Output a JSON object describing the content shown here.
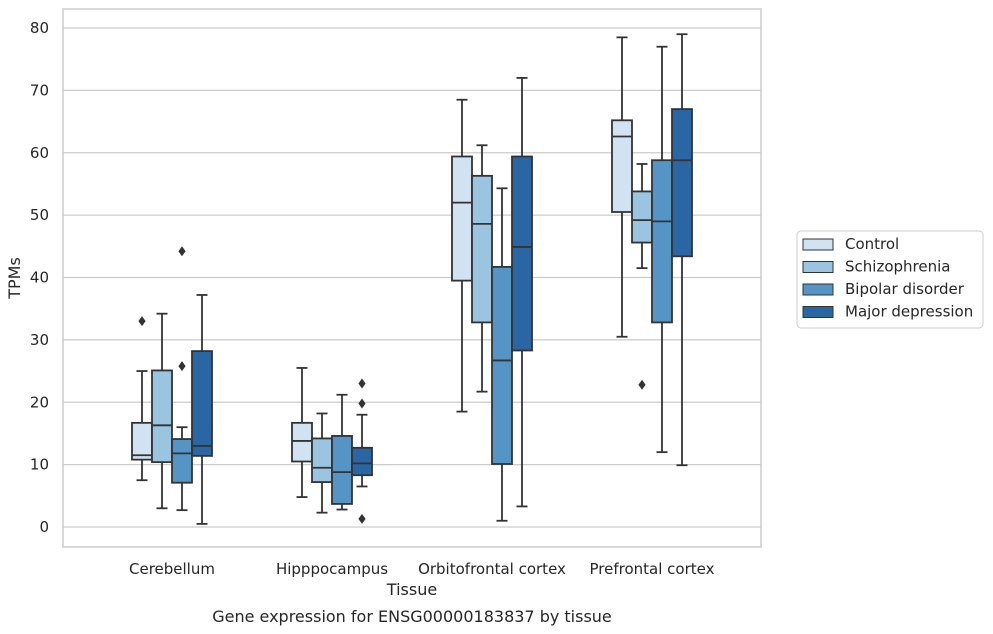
{
  "chart_data": {
    "type": "box",
    "title": "",
    "caption": "Gene expression for ENSG00000183837 by tissue",
    "xlabel": "Tissue",
    "ylabel": "TPMs",
    "ylim": [
      -3.2,
      83.2
    ],
    "yticks": [
      0,
      10,
      20,
      30,
      40,
      50,
      60,
      70,
      80
    ],
    "grid": "horizontal",
    "legend_position": "right",
    "categories": [
      "Cerebellum",
      "Hipppocampus",
      "Orbitofrontal cortex",
      "Prefrontal cortex"
    ],
    "series": [
      {
        "name": "Control",
        "color": "#d1e2f2",
        "boxes": [
          {
            "whislo": 7.5,
            "q1": 10.8,
            "med": 11.5,
            "q3": 16.7,
            "whishi": 25.0,
            "fliers": [
              33.0
            ]
          },
          {
            "whislo": 4.8,
            "q1": 10.5,
            "med": 13.8,
            "q3": 16.7,
            "whishi": 25.5,
            "fliers": []
          },
          {
            "whislo": 18.5,
            "q1": 39.5,
            "med": 52.0,
            "q3": 59.4,
            "whishi": 68.5,
            "fliers": []
          },
          {
            "whislo": 30.5,
            "q1": 50.5,
            "med": 62.6,
            "q3": 65.2,
            "whishi": 78.5,
            "fliers": []
          }
        ]
      },
      {
        "name": "Schizophrenia",
        "color": "#9ac4df",
        "boxes": [
          {
            "whislo": 3.0,
            "q1": 10.4,
            "med": 16.3,
            "q3": 25.1,
            "whishi": 34.2,
            "fliers": []
          },
          {
            "whislo": 2.3,
            "q1": 7.2,
            "med": 9.5,
            "q3": 14.2,
            "whishi": 18.2,
            "fliers": []
          },
          {
            "whislo": 21.7,
            "q1": 32.8,
            "med": 48.6,
            "q3": 56.3,
            "whishi": 61.2,
            "fliers": []
          },
          {
            "whislo": 41.5,
            "q1": 45.6,
            "med": 49.2,
            "q3": 53.8,
            "whishi": 58.2,
            "fliers": [
              22.8
            ]
          }
        ]
      },
      {
        "name": "Bipolar disorder",
        "color": "#5595c6",
        "boxes": [
          {
            "whislo": 2.7,
            "q1": 7.1,
            "med": 11.8,
            "q3": 14.1,
            "whishi": 16.0,
            "fliers": [
              44.2,
              25.8
            ]
          },
          {
            "whislo": 2.8,
            "q1": 3.7,
            "med": 8.8,
            "q3": 14.6,
            "whishi": 21.2,
            "fliers": []
          },
          {
            "whislo": 1.0,
            "q1": 10.1,
            "med": 26.7,
            "q3": 41.7,
            "whishi": 54.3,
            "fliers": []
          },
          {
            "whislo": 12.0,
            "q1": 32.8,
            "med": 49.0,
            "q3": 58.8,
            "whishi": 77.0,
            "fliers": []
          }
        ]
      },
      {
        "name": "Major depression",
        "color": "#2a66a4",
        "boxes": [
          {
            "whislo": 0.5,
            "q1": 11.4,
            "med": 13.0,
            "q3": 28.2,
            "whishi": 37.2,
            "fliers": []
          },
          {
            "whislo": 6.5,
            "q1": 8.3,
            "med": 10.2,
            "q3": 12.7,
            "whishi": 18.0,
            "fliers": [
              23.0,
              19.8,
              1.3
            ]
          },
          {
            "whislo": 3.3,
            "q1": 28.3,
            "med": 44.9,
            "q3": 59.4,
            "whishi": 72.0,
            "fliers": []
          },
          {
            "whislo": 9.9,
            "q1": 43.4,
            "med": 58.8,
            "q3": 67.0,
            "whishi": 79.0,
            "fliers": []
          }
        ]
      }
    ]
  }
}
